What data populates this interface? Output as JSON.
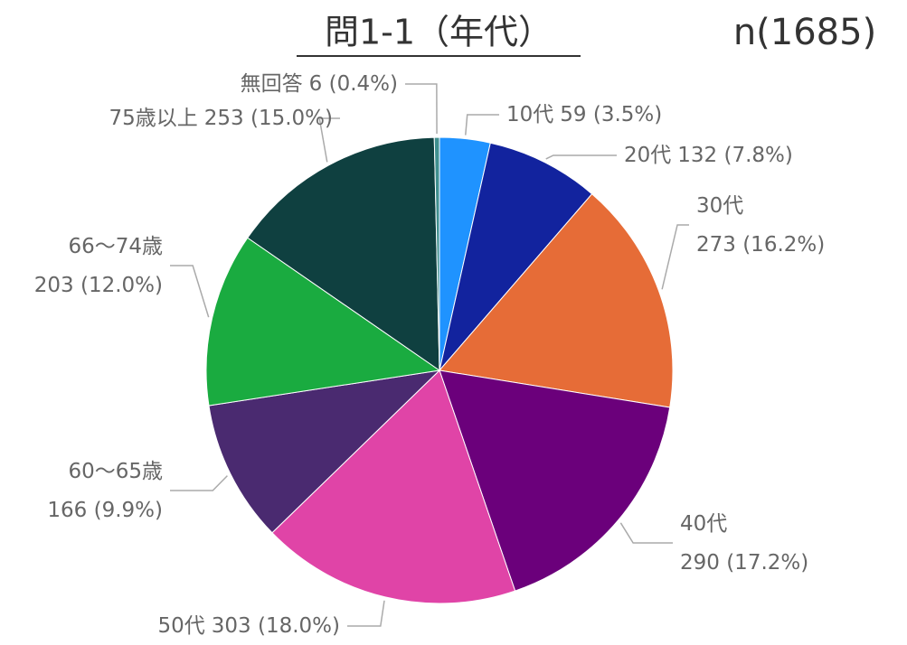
{
  "chart_data": {
    "type": "pie",
    "title": "問1-1（年代）",
    "note": "n(1685)",
    "categories": [
      "10代",
      "20代",
      "30代",
      "40代",
      "50代",
      "60～65歳",
      "66～74歳",
      "75歳以上",
      "無回答"
    ],
    "values": [
      59,
      132,
      273,
      290,
      303,
      166,
      203,
      253,
      6
    ],
    "value_labels": [
      "59 (3.5%)",
      "132 (7.8%)",
      "273 (16.2%)",
      "290 (17.2%)",
      "303 (18.0%)",
      "166 (9.9%)",
      "203 (12.0%)",
      "253 (15.0%)",
      "6 (0.4%)"
    ],
    "colors": [
      "#1f93ff",
      "#12239e",
      "#e66c37",
      "#6b007b",
      "#e044a7",
      "#4a2a70",
      "#1aab40",
      "#0f4040",
      "#3f8f8f"
    ]
  }
}
